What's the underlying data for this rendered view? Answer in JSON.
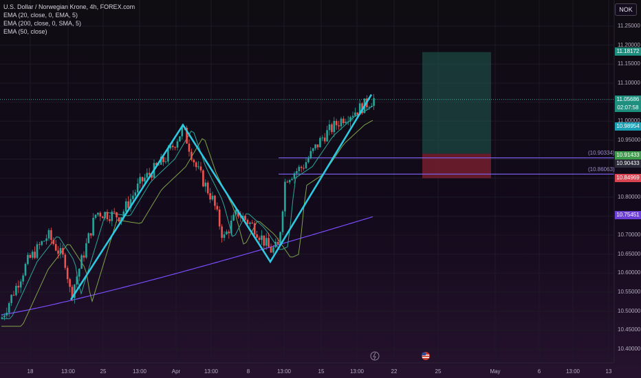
{
  "legend": {
    "title": "U.S. Dollar / Norwegian Krone, 4h, FOREX.com",
    "ema20": "EMA (20, close, 0, EMA, 5)",
    "ema200": "EMA (200, close, 0, SMA, 5)",
    "ema50": "EMA (50, close)"
  },
  "currency": "NOK",
  "price_axis": {
    "labels": [
      "11.25000",
      "11.20000",
      "11.15000",
      "11.10000",
      "11.05000",
      "11.00000",
      "10.95000",
      "10.90000",
      "10.85000",
      "10.80000",
      "10.75000",
      "10.70000",
      "10.65000",
      "10.60000",
      "10.55000",
      "10.50000",
      "10.45000",
      "10.40000"
    ],
    "tags": {
      "target": "11.18172",
      "current_price": "11.05686",
      "countdown": "02:07:58",
      "ema20": "10.98954",
      "entry": "10.91433",
      "level_a": "10.90433",
      "stop": "10.84969",
      "ema200": "10.75451"
    },
    "line_labels": {
      "upper": "(10.90334)",
      "lower": "(10.86063)"
    }
  },
  "time_axis": [
    "18",
    "13:00",
    "25",
    "13:00",
    "Apr",
    "13:00",
    "8",
    "13:00",
    "15",
    "13:00",
    "22",
    "25",
    "May",
    "6",
    "13:00",
    "13"
  ],
  "colors": {
    "background": "#0b0714",
    "bull": "#26a69a",
    "bear": "#ef5350",
    "pattern": "#2ec8e0",
    "ema20": "#2aa89a",
    "ema50": "#7fa44a",
    "ema200": "#7c4dff",
    "horizontal_lines": "#8066ff",
    "target_zone": "#1f5c52",
    "stop_zone": "#7a1f2e"
  },
  "chart_data": {
    "type": "candlestick",
    "symbol": "USDNOK",
    "timeframe": "4h",
    "y_range": [
      10.37,
      11.28
    ],
    "pattern": "W (double bottom)",
    "pattern_points": [
      10.53,
      10.99,
      10.63,
      11.07
    ],
    "ema200_range": [
      10.49,
      10.75
    ],
    "position": {
      "entry": 10.91433,
      "target": 11.18172,
      "stop": 10.84969
    },
    "current_price": 11.05686
  }
}
